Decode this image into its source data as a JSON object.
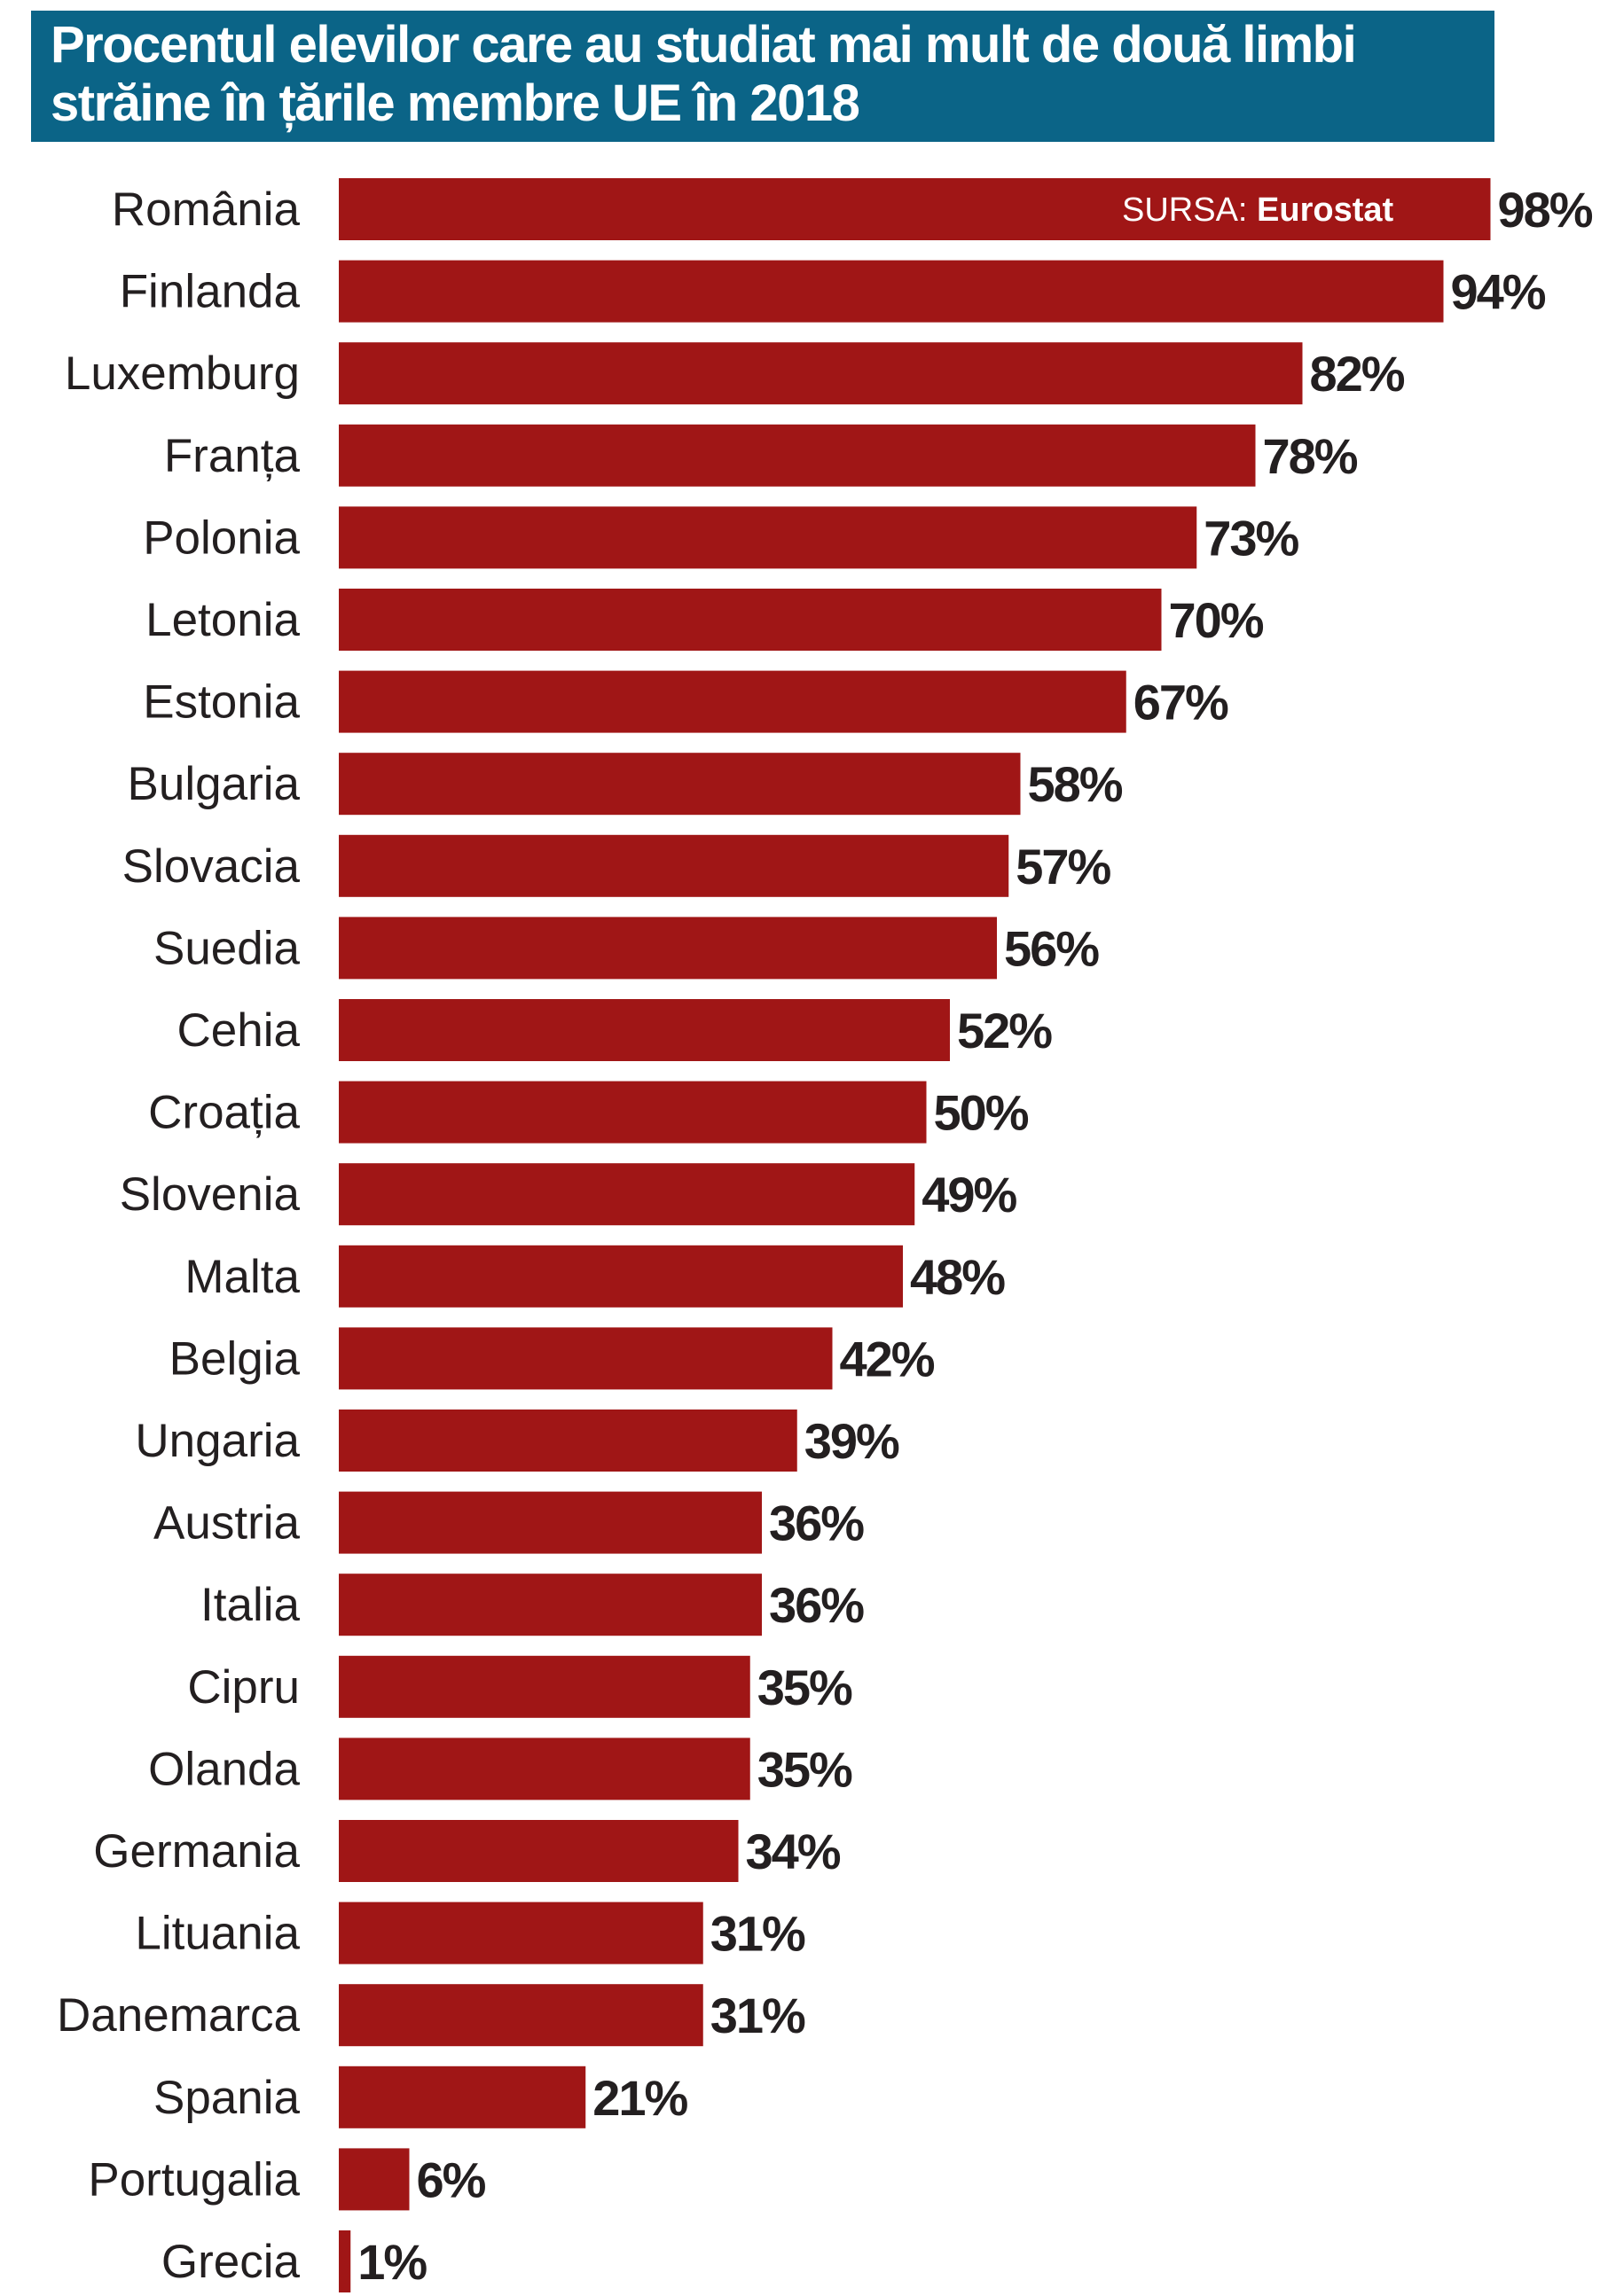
{
  "title": {
    "line1": "Procentul elevilor care au studiat mai mult de două limbi",
    "line2": "străine în țările membre UE în 2018"
  },
  "source": {
    "label": "SURSA:",
    "name": "Eurostat"
  },
  "colors": {
    "title_background": "#0b6487",
    "bar": "#a01616",
    "text": "#231f20"
  },
  "chart_data": {
    "type": "bar",
    "orientation": "horizontal",
    "title": "Procentul elevilor care au studiat mai mult de două limbi străine în țările membre UE în 2018",
    "categories": [
      "România",
      "Finlanda",
      "Luxemburg",
      "Franța",
      "Polonia",
      "Letonia",
      "Estonia",
      "Bulgaria",
      "Slovacia",
      "Suedia",
      "Cehia",
      "Croația",
      "Slovenia",
      "Malta",
      "Belgia",
      "Ungaria",
      "Austria",
      "Italia",
      "Cipru",
      "Olanda",
      "Germania",
      "Lituania",
      "Danemarca",
      "Spania",
      "Portugalia",
      "Grecia"
    ],
    "values": [
      98,
      94,
      82,
      78,
      73,
      70,
      67,
      58,
      57,
      56,
      52,
      50,
      49,
      48,
      42,
      39,
      36,
      36,
      35,
      35,
      34,
      31,
      31,
      21,
      6,
      1
    ],
    "value_labels": [
      "98%",
      "94%",
      "82%",
      "78%",
      "73%",
      "70%",
      "67%",
      "58%",
      "57%",
      "56%",
      "52%",
      "50%",
      "49%",
      "48%",
      "42%",
      "39%",
      "36%",
      "36%",
      "35%",
      "35%",
      "34%",
      "31%",
      "31%",
      "21%",
      "6%",
      "1%"
    ],
    "unit": "%",
    "xlim": [
      0,
      100
    ],
    "xlabel": "",
    "ylabel": "",
    "grid": false,
    "legend": "none"
  }
}
